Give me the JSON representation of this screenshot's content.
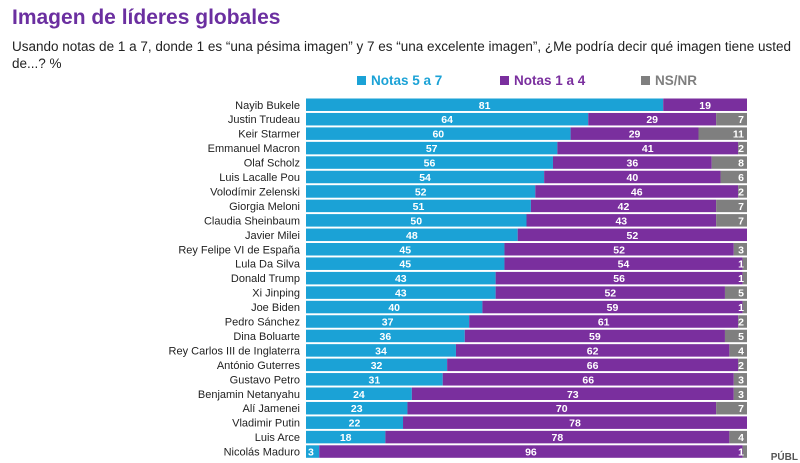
{
  "header": {
    "title": "Imagen de líderes globales",
    "subtitle": "Usando notas de 1 a 7, donde 1 es “una pésima imagen” y 7 es “una excelente imagen”, ¿Me podría decir qué imagen tiene usted de...? %"
  },
  "footer": {
    "logo_text": "PÚBL"
  },
  "chart_data": {
    "type": "bar",
    "stacked": true,
    "orientation": "horizontal",
    "title": "Imagen de líderes globales",
    "legend_position": "top",
    "categories": [
      "Nayib Bukele",
      "Justin Trudeau",
      "Keir Starmer",
      "Emmanuel Macron",
      "Olaf Scholz",
      "Luis Lacalle Pou",
      "Volodímir Zelenski",
      "Giorgia Meloni",
      "Claudia Sheinbaum",
      "Javier Milei",
      "Rey Felipe VI de España",
      "Lula Da Silva",
      "Donald Trump",
      "Xi Jinping",
      "Joe Biden",
      "Pedro Sánchez",
      "Dina Boluarte",
      "Rey Carlos III de Inglaterra",
      "António Guterres",
      "Gustavo Petro",
      "Benjamin Netanyahu",
      "Alí Jamenei",
      "Vladimir Putin",
      "Luis Arce",
      "Nicolás Maduro"
    ],
    "series": [
      {
        "name": "Notas 5 a 7",
        "color": "#1ba2d6",
        "values": [
          81,
          64,
          60,
          57,
          56,
          54,
          52,
          51,
          50,
          48,
          45,
          45,
          43,
          43,
          40,
          37,
          36,
          34,
          32,
          31,
          24,
          23,
          22,
          18,
          3
        ]
      },
      {
        "name": "Notas 1 a 4",
        "color": "#7a2f9e",
        "values": [
          19,
          29,
          29,
          41,
          36,
          40,
          46,
          42,
          43,
          52,
          52,
          54,
          56,
          52,
          59,
          61,
          59,
          62,
          66,
          66,
          73,
          70,
          78,
          78,
          96
        ]
      },
      {
        "name": "NS/NR",
        "color": "#7f7f7f",
        "values": [
          0,
          7,
          11,
          2,
          8,
          6,
          2,
          7,
          7,
          0,
          3,
          1,
          1,
          5,
          1,
          2,
          5,
          4,
          2,
          3,
          3,
          7,
          0,
          4,
          1
        ]
      }
    ],
    "xlim": [
      0,
      100
    ]
  }
}
